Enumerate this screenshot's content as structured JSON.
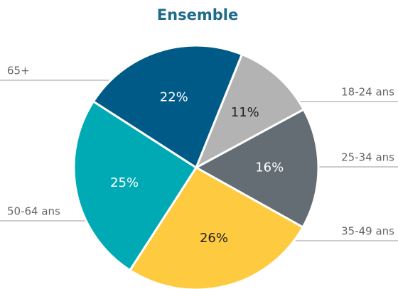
{
  "chart_data": {
    "type": "pie",
    "title": "Ensemble",
    "categories": [
      "18-24 ans",
      "25-34 ans",
      "35-49 ans",
      "50-64 ans",
      "65+"
    ],
    "values": [
      11,
      16,
      26,
      25,
      22
    ],
    "value_labels": [
      "11%",
      "16%",
      "26%",
      "25%",
      "22%"
    ],
    "colors": [
      "#b3b3b3",
      "#646c74",
      "#fdca40",
      "#00aab5",
      "#005a87"
    ]
  }
}
